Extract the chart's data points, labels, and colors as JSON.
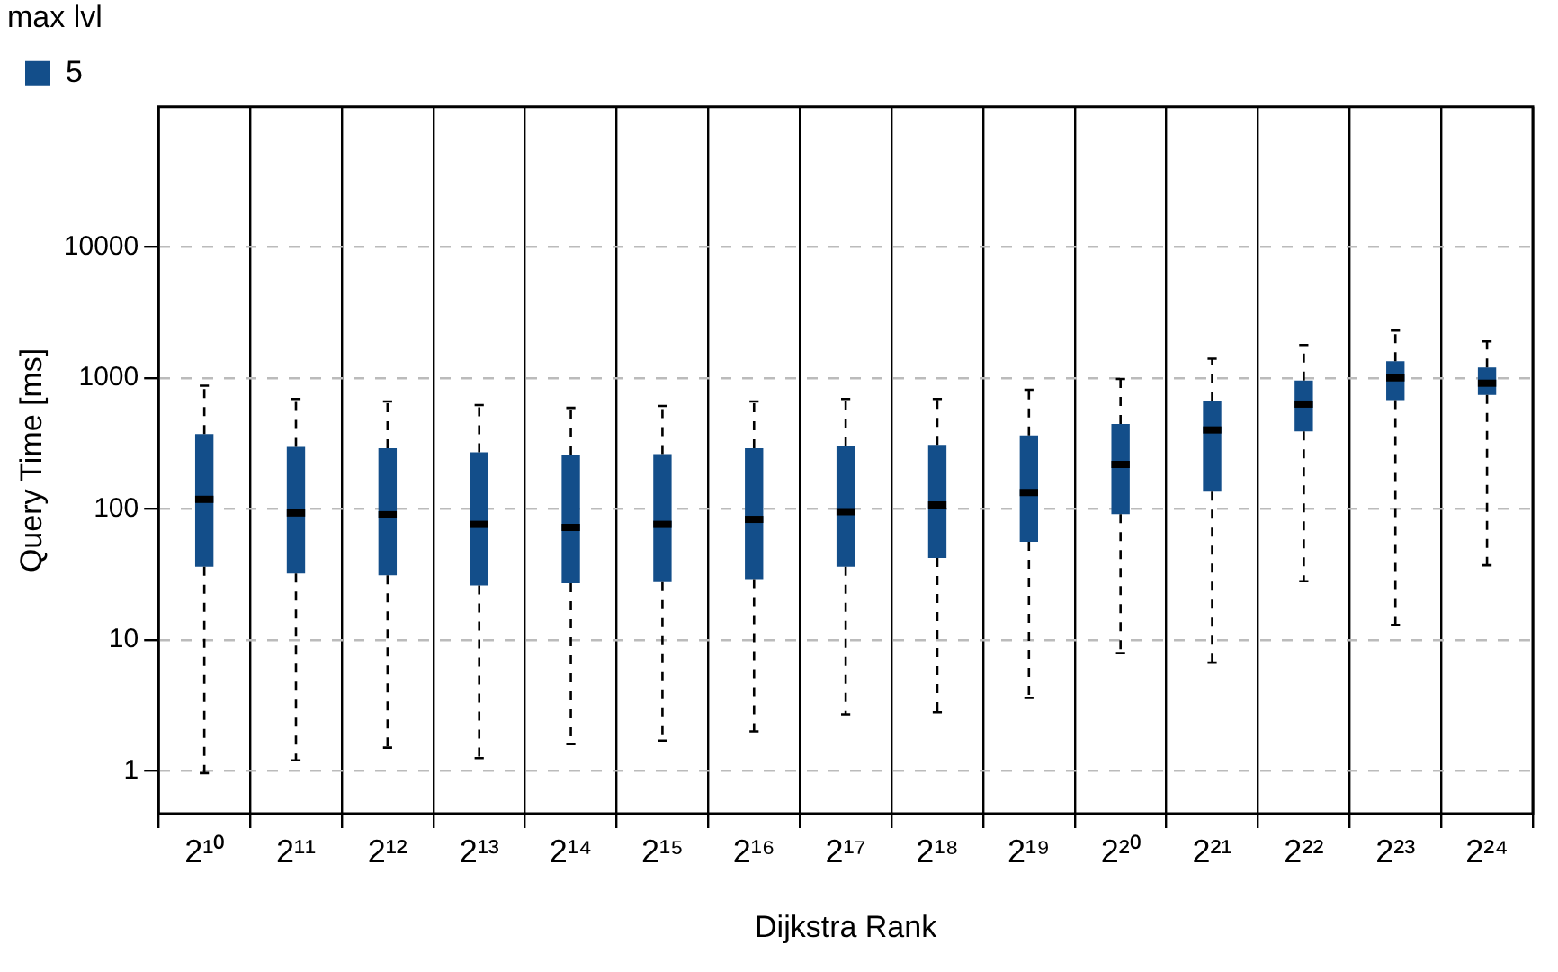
{
  "chart_data": {
    "type": "box",
    "xlabel": "Dijkstra Rank",
    "ylabel": "Query Time [ms]",
    "legend_title": "max lvl",
    "legend": "top left",
    "grid": true,
    "log": "y",
    "categories": [
      "2¹⁰",
      "2¹¹",
      "2¹²",
      "2¹³",
      "2¹⁴",
      "2¹⁵",
      "2¹⁶",
      "2¹⁷",
      "2¹⁸",
      "2¹⁹",
      "2²⁰",
      "2²¹",
      "2²²",
      "2²³",
      "2²⁴"
    ],
    "ylim": [
      0.47,
      117000
    ],
    "yticks": [
      1,
      10,
      100,
      1000,
      10000
    ],
    "series": [
      {
        "name": "5",
        "color": "#134e8a",
        "boxes": [
          {
            "low": 0.96,
            "q1": 36,
            "median": 118,
            "q3": 372,
            "high": 870
          },
          {
            "low": 1.2,
            "q1": 32,
            "median": 93,
            "q3": 297,
            "high": 690
          },
          {
            "low": 1.5,
            "q1": 31,
            "median": 90,
            "q3": 290,
            "high": 660
          },
          {
            "low": 1.25,
            "q1": 26,
            "median": 76,
            "q3": 270,
            "high": 620
          },
          {
            "low": 1.6,
            "q1": 27,
            "median": 72,
            "q3": 257,
            "high": 590
          },
          {
            "low": 1.7,
            "q1": 27.5,
            "median": 76,
            "q3": 262,
            "high": 610
          },
          {
            "low": 2.0,
            "q1": 29,
            "median": 83,
            "q3": 290,
            "high": 660
          },
          {
            "low": 2.7,
            "q1": 36,
            "median": 95,
            "q3": 300,
            "high": 690
          },
          {
            "low": 2.8,
            "q1": 42,
            "median": 107,
            "q3": 308,
            "high": 690
          },
          {
            "low": 3.6,
            "q1": 56,
            "median": 133,
            "q3": 363,
            "high": 810
          },
          {
            "low": 7.9,
            "q1": 91,
            "median": 218,
            "q3": 445,
            "high": 980
          },
          {
            "low": 6.7,
            "q1": 135,
            "median": 400,
            "q3": 660,
            "high": 1400
          },
          {
            "low": 28,
            "q1": 390,
            "median": 630,
            "q3": 955,
            "high": 1780
          },
          {
            "low": 13,
            "q1": 675,
            "median": 1000,
            "q3": 1340,
            "high": 2300
          },
          {
            "low": 37,
            "q1": 740,
            "median": 910,
            "q3": 1200,
            "high": 1900
          }
        ]
      }
    ]
  }
}
